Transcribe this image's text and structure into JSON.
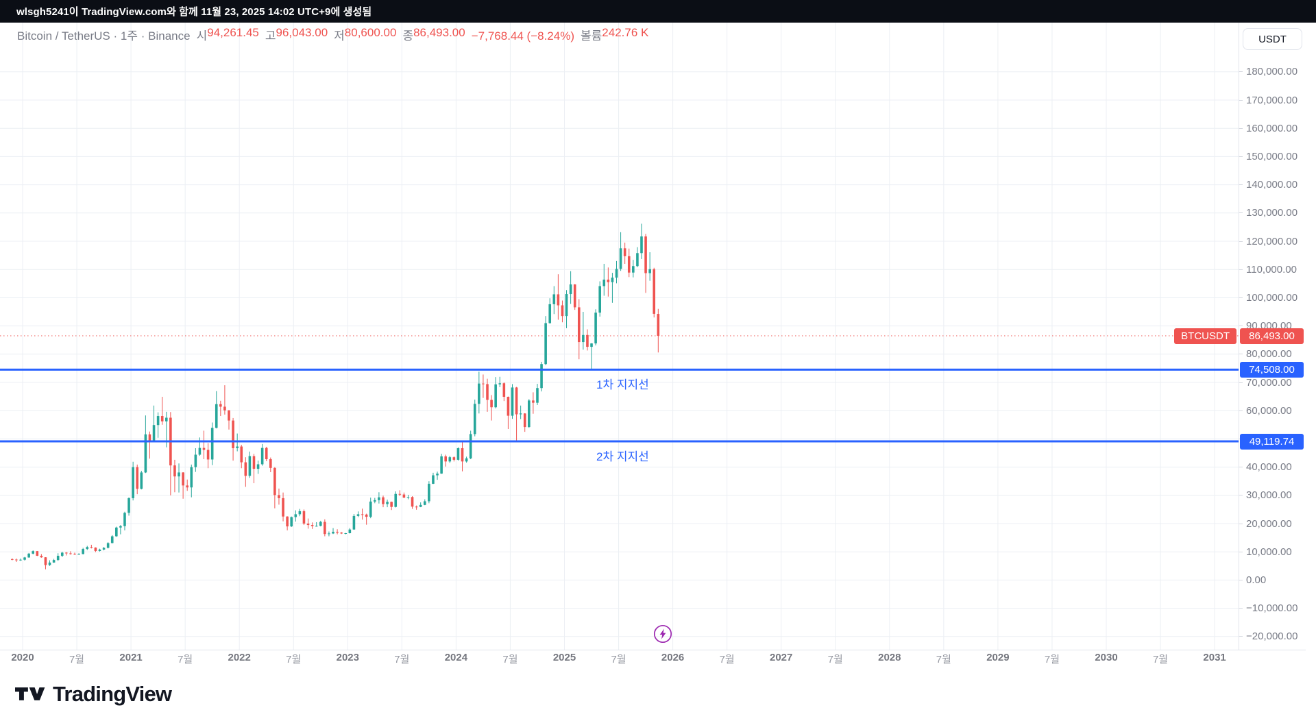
{
  "topbar": {
    "attribution": "wlsgh5241이 TradingView.com와 함께 11월 23, 2025 14:02 UTC+9에 생성됨"
  },
  "legend": {
    "symbol": "Bitcoin / TetherUS",
    "sep": "·",
    "interval": "1주",
    "exchange": "Binance",
    "ohlc": [
      {
        "label": "시",
        "value": "94,261.45"
      },
      {
        "label": "고",
        "value": "96,043.00"
      },
      {
        "label": "저",
        "value": "80,600.00"
      },
      {
        "label": "종",
        "value": "86,493.00"
      }
    ],
    "change": "−7,768.44 (−8.24%)",
    "volume_label": "볼륨",
    "volume_value": "242.76 K"
  },
  "y_axis": {
    "currency_button": "USDT",
    "ticks": [
      {
        "v": 180000,
        "label": "180,000.00"
      },
      {
        "v": 170000,
        "label": "170,000.00"
      },
      {
        "v": 160000,
        "label": "160,000.00"
      },
      {
        "v": 150000,
        "label": "150,000.00"
      },
      {
        "v": 140000,
        "label": "140,000.00"
      },
      {
        "v": 130000,
        "label": "130,000.00"
      },
      {
        "v": 120000,
        "label": "120,000.00"
      },
      {
        "v": 110000,
        "label": "110,000.00"
      },
      {
        "v": 100000,
        "label": "100,000.00"
      },
      {
        "v": 90000,
        "label": "90,000.00"
      },
      {
        "v": 80000,
        "label": "80,000.00"
      },
      {
        "v": 70000,
        "label": "70,000.00"
      },
      {
        "v": 60000,
        "label": "60,000.00"
      },
      {
        "v": 50000,
        "label": "50,000.00"
      },
      {
        "v": 40000,
        "label": "40,000.00"
      },
      {
        "v": 30000,
        "label": "30,000.00"
      },
      {
        "v": 20000,
        "label": "20,000.00"
      },
      {
        "v": 10000,
        "label": "10,000.00"
      },
      {
        "v": 0,
        "label": "0.00"
      },
      {
        "v": -10000,
        "label": "−10,000.00"
      },
      {
        "v": -20000,
        "label": "−20,000.00"
      }
    ]
  },
  "x_axis": {
    "ticks": [
      {
        "label": "2020",
        "major": true
      },
      {
        "label": "7월",
        "major": false
      },
      {
        "label": "2021",
        "major": true
      },
      {
        "label": "7월",
        "major": false
      },
      {
        "label": "2022",
        "major": true
      },
      {
        "label": "7월",
        "major": false
      },
      {
        "label": "2023",
        "major": true
      },
      {
        "label": "7월",
        "major": false
      },
      {
        "label": "2024",
        "major": true
      },
      {
        "label": "7월",
        "major": false
      },
      {
        "label": "2025",
        "major": true
      },
      {
        "label": "7월",
        "major": false
      },
      {
        "label": "2026",
        "major": true
      },
      {
        "label": "7월",
        "major": false
      },
      {
        "label": "2027",
        "major": true
      },
      {
        "label": "7월",
        "major": false
      },
      {
        "label": "2028",
        "major": true
      },
      {
        "label": "7월",
        "major": false
      },
      {
        "label": "2029",
        "major": true
      },
      {
        "label": "7월",
        "major": false
      },
      {
        "label": "2030",
        "major": true
      },
      {
        "label": "7월",
        "major": false
      },
      {
        "label": "2031",
        "major": true
      }
    ]
  },
  "price_tags": {
    "symbol": "BTCUSDT",
    "last": "86,493.00",
    "support1": "74,508.00",
    "support2": "49,119.74"
  },
  "annotations": {
    "support1_label": "1차 지지선",
    "support2_label": "2차 지지선"
  },
  "footer": {
    "brand": "TradingView"
  },
  "colors": {
    "up": "#26a69a",
    "down": "#ef5350",
    "support_line": "#2962ff",
    "last_price_line": "#ef5350",
    "tag_blue_bg": "#2962ff",
    "tag_red_bg": "#ef5350",
    "grid": "#eceff4",
    "flash": "#9c27b0"
  },
  "chart_data": {
    "type": "candlestick",
    "title": "Bitcoin / TetherUS",
    "symbol": "BTCUSDT",
    "exchange": "Binance",
    "interval": "1주",
    "currency": "USDT",
    "ylabel": "USDT",
    "ylim": [
      -20000,
      185000
    ],
    "grid": true,
    "visible_years": [
      2020,
      2031
    ],
    "last_close": 86493,
    "last_bar": {
      "open": 94261.45,
      "high": 96043.0,
      "low": 80600.0,
      "close": 86493.0,
      "change": -7768.44,
      "change_pct": -8.24,
      "volume": "242.76 K"
    },
    "support_lines": [
      {
        "value": 74508.0,
        "label": "1차 지지선"
      },
      {
        "value": 49119.74,
        "label": "2차 지지선"
      }
    ],
    "candles": {
      "start": "2019-12",
      "samples_per_year": 26,
      "ohlc": [
        [
          7400,
          7700,
          7000,
          7250
        ],
        [
          7250,
          7600,
          6400,
          7200
        ],
        [
          7200,
          7600,
          6800,
          7200
        ],
        [
          7200,
          8200,
          6900,
          8000
        ],
        [
          8000,
          9600,
          7900,
          9350
        ],
        [
          9350,
          10500,
          9100,
          10250
        ],
        [
          10250,
          10300,
          8500,
          8600
        ],
        [
          8600,
          9200,
          7900,
          8050
        ],
        [
          8050,
          8100,
          3800,
          5300
        ],
        [
          5300,
          7000,
          5000,
          6200
        ],
        [
          6200,
          7500,
          6100,
          7100
        ],
        [
          7100,
          9500,
          6800,
          8600
        ],
        [
          8600,
          10000,
          8100,
          9700
        ],
        [
          9700,
          9900,
          8700,
          9450
        ],
        [
          9450,
          10200,
          9000,
          9300
        ],
        [
          9300,
          9700,
          8900,
          9100
        ],
        [
          9100,
          9500,
          9000,
          9200
        ],
        [
          9200,
          11400,
          9100,
          11000
        ],
        [
          11000,
          12100,
          10600,
          11700
        ],
        [
          11700,
          12500,
          11200,
          11500
        ],
        [
          11500,
          11600,
          9900,
          10300
        ],
        [
          10300,
          11100,
          10100,
          10800
        ],
        [
          10800,
          11700,
          10500,
          11400
        ],
        [
          11400,
          13400,
          11200,
          13100
        ],
        [
          13100,
          15900,
          13000,
          15500
        ],
        [
          15500,
          18900,
          15300,
          18600
        ],
        [
          18600,
          19500,
          16200,
          19100
        ],
        [
          19100,
          24200,
          17600,
          23800
        ],
        [
          23800,
          29300,
          22800,
          29000
        ],
        [
          29000,
          41900,
          28200,
          40000
        ],
        [
          40000,
          40900,
          30400,
          32300
        ],
        [
          32300,
          38700,
          32100,
          38100
        ],
        [
          38100,
          58300,
          37900,
          51600
        ],
        [
          51600,
          52600,
          43000,
          49000
        ],
        [
          49000,
          61800,
          48900,
          54900
        ],
        [
          54900,
          59400,
          50400,
          58100
        ],
        [
          58100,
          64900,
          55000,
          56200
        ],
        [
          56200,
          59600,
          47000,
          57500
        ],
        [
          57500,
          59500,
          30000,
          40600
        ],
        [
          40600,
          42600,
          31100,
          36700
        ],
        [
          36700,
          41300,
          31000,
          38100
        ],
        [
          38100,
          38200,
          28800,
          33500
        ],
        [
          33500,
          35600,
          31600,
          32800
        ],
        [
          32800,
          40900,
          29300,
          40000
        ],
        [
          40000,
          46700,
          38300,
          44400
        ],
        [
          44400,
          50500,
          44000,
          46800
        ],
        [
          46800,
          52900,
          42800,
          46100
        ],
        [
          46100,
          48500,
          39600,
          42700
        ],
        [
          42700,
          55800,
          40700,
          53900
        ],
        [
          53900,
          66900,
          53700,
          62300
        ],
        [
          62300,
          63500,
          58100,
          61400
        ],
        [
          61400,
          69000,
          58600,
          60100
        ],
        [
          60100,
          60200,
          53300,
          56500
        ],
        [
          56500,
          57400,
          42300,
          46700
        ],
        [
          46700,
          51900,
          45600,
          47300
        ],
        [
          47300,
          47900,
          39600,
          41700
        ],
        [
          41700,
          43500,
          33000,
          36900
        ],
        [
          36900,
          45500,
          36200,
          43900
        ],
        [
          43900,
          44700,
          34300,
          39400
        ],
        [
          39400,
          42300,
          37600,
          41000
        ],
        [
          41000,
          48200,
          40500,
          46800
        ],
        [
          46800,
          47200,
          42100,
          42800
        ],
        [
          42800,
          43400,
          38200,
          39700
        ],
        [
          39700,
          40000,
          25400,
          30100
        ],
        [
          30100,
          32400,
          26700,
          29000
        ],
        [
          29000,
          31000,
          20800,
          22500
        ],
        [
          22500,
          22600,
          17600,
          19000
        ],
        [
          19000,
          22500,
          18800,
          22300
        ],
        [
          22300,
          24700,
          20700,
          23300
        ],
        [
          23300,
          25200,
          22600,
          24400
        ],
        [
          24400,
          25000,
          19500,
          20000
        ],
        [
          20000,
          21800,
          18200,
          19500
        ],
        [
          19500,
          20400,
          18100,
          19100
        ],
        [
          19100,
          20500,
          18900,
          19200
        ],
        [
          19200,
          21000,
          19000,
          20600
        ],
        [
          20600,
          21500,
          15500,
          16300
        ],
        [
          16300,
          17200,
          15500,
          16500
        ],
        [
          16500,
          18400,
          16300,
          17100
        ],
        [
          17100,
          18000,
          16200,
          16800
        ],
        [
          16800,
          17000,
          16300,
          16500
        ],
        [
          16500,
          16700,
          16200,
          16600
        ],
        [
          16600,
          18400,
          16500,
          17900
        ],
        [
          17900,
          23400,
          17800,
          22700
        ],
        [
          22700,
          24300,
          22300,
          23300
        ],
        [
          23300,
          25300,
          21400,
          23200
        ],
        [
          23200,
          23500,
          19600,
          22400
        ],
        [
          22400,
          29200,
          21900,
          27800
        ],
        [
          27800,
          29100,
          27200,
          28300
        ],
        [
          28300,
          31100,
          27100,
          29300
        ],
        [
          29300,
          29900,
          25800,
          26900
        ],
        [
          26900,
          28500,
          25800,
          27700
        ],
        [
          27700,
          27800,
          24800,
          25900
        ],
        [
          25900,
          31400,
          25700,
          30500
        ],
        [
          30500,
          31800,
          29700,
          30300
        ],
        [
          30300,
          31000,
          29000,
          29200
        ],
        [
          29200,
          30200,
          28600,
          29400
        ],
        [
          29400,
          29700,
          25200,
          26000
        ],
        [
          26000,
          26400,
          24900,
          25900
        ],
        [
          25900,
          27500,
          25800,
          26600
        ],
        [
          26600,
          28600,
          26500,
          27900
        ],
        [
          27900,
          35000,
          27200,
          34100
        ],
        [
          34100,
          38000,
          34000,
          37100
        ],
        [
          37100,
          38400,
          35500,
          37700
        ],
        [
          37700,
          44700,
          37600,
          43800
        ],
        [
          43800,
          44400,
          40200,
          42000
        ],
        [
          42000,
          44000,
          41500,
          43500
        ],
        [
          43500,
          43800,
          42000,
          42600
        ],
        [
          42600,
          47000,
          42300,
          46700
        ],
        [
          46700,
          49000,
          38500,
          42000
        ],
        [
          42000,
          43700,
          41600,
          43100
        ],
        [
          43100,
          52900,
          42800,
          51700
        ],
        [
          51700,
          63900,
          50900,
          62400
        ],
        [
          62400,
          73800,
          59000,
          69600
        ],
        [
          69600,
          72800,
          64500,
          69400
        ],
        [
          69400,
          71300,
          59600,
          63800
        ],
        [
          63800,
          65500,
          56500,
          61200
        ],
        [
          61200,
          71900,
          60800,
          69300
        ],
        [
          69300,
          72000,
          68300,
          69700
        ],
        [
          69700,
          70000,
          63400,
          64900
        ],
        [
          64900,
          65000,
          53500,
          58200
        ],
        [
          58200,
          69400,
          57100,
          68200
        ],
        [
          68200,
          68400,
          49100,
          58700
        ],
        [
          58700,
          61800,
          57000,
          59000
        ],
        [
          59000,
          59100,
          52500,
          54200
        ],
        [
          54200,
          64100,
          53900,
          63600
        ],
        [
          63600,
          66500,
          58900,
          62800
        ],
        [
          62800,
          69500,
          62000,
          68000
        ],
        [
          68000,
          77300,
          66800,
          76500
        ],
        [
          76500,
          93500,
          76100,
          91000
        ],
        [
          91000,
          99800,
          90800,
          97700
        ],
        [
          97700,
          104100,
          94200,
          101200
        ],
        [
          101200,
          108300,
          92200,
          97300
        ],
        [
          97300,
          99000,
          91300,
          93500
        ],
        [
          93500,
          102700,
          89200,
          101300
        ],
        [
          101300,
          109400,
          97800,
          104700
        ],
        [
          104700,
          104800,
          95700,
          96600
        ],
        [
          96600,
          99500,
          78200,
          84300
        ],
        [
          84300,
          95000,
          81600,
          86800
        ],
        [
          86800,
          88800,
          81300,
          82600
        ],
        [
          82600,
          83900,
          74508,
          83800
        ],
        [
          83800,
          95900,
          83100,
          94700
        ],
        [
          94700,
          105800,
          93300,
          104100
        ],
        [
          104100,
          112000,
          100700,
          106400
        ],
        [
          106400,
          110700,
          100400,
          105500
        ],
        [
          105500,
          108800,
          98200,
          107100
        ],
        [
          107100,
          113000,
          105100,
          110200
        ],
        [
          110200,
          123200,
          109500,
          117500
        ],
        [
          117500,
          119500,
          112000,
          114700
        ],
        [
          114700,
          117400,
          107300,
          108900
        ],
        [
          108900,
          113400,
          107200,
          111200
        ],
        [
          111200,
          117900,
          110800,
          115800
        ],
        [
          115800,
          126200,
          113700,
          121700
        ],
        [
          121700,
          122600,
          101700,
          108700
        ],
        [
          108700,
          116100,
          106000,
          110100
        ],
        [
          110100,
          110600,
          93000,
          94300
        ],
        [
          94261.45,
          96043,
          80600,
          86493
        ]
      ]
    }
  }
}
